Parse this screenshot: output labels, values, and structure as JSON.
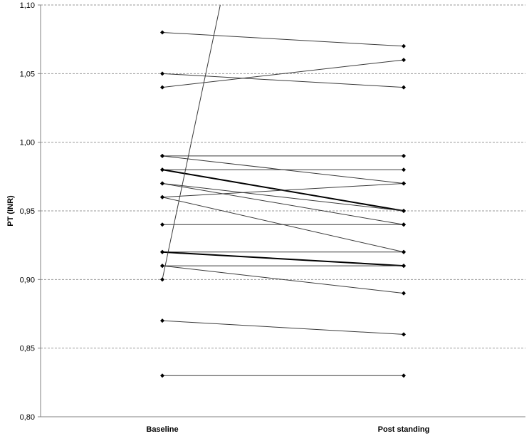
{
  "chart_data": {
    "type": "line",
    "title": "",
    "xlabel": "",
    "ylabel": "PT (INR)",
    "categories": [
      "Baseline",
      "Post standing"
    ],
    "ylim": [
      0.8,
      1.1
    ],
    "yticks": [
      "0,80",
      "0,85",
      "0,90",
      "0,95",
      "1,00",
      "1,05",
      "1,10"
    ],
    "ytick_values": [
      0.8,
      0.85,
      0.9,
      0.95,
      1.0,
      1.05,
      1.1
    ],
    "grid": "horizontal-dashed",
    "legend": "none",
    "series": [
      {
        "values": [
          1.08,
          1.07
        ]
      },
      {
        "values": [
          1.05,
          1.04
        ]
      },
      {
        "values": [
          1.04,
          1.06
        ]
      },
      {
        "values": [
          0.99,
          0.99
        ]
      },
      {
        "values": [
          0.99,
          0.97
        ]
      },
      {
        "values": [
          0.98,
          0.98
        ]
      },
      {
        "values": [
          0.98,
          0.95
        ],
        "bold": true
      },
      {
        "values": [
          0.97,
          0.94
        ]
      },
      {
        "values": [
          0.97,
          0.95
        ]
      },
      {
        "values": [
          0.96,
          0.97
        ]
      },
      {
        "values": [
          0.96,
          0.92
        ]
      },
      {
        "values": [
          0.94,
          0.94
        ]
      },
      {
        "values": [
          0.92,
          0.92
        ]
      },
      {
        "values": [
          0.92,
          0.91
        ],
        "bold": true
      },
      {
        "values": [
          0.91,
          0.91
        ]
      },
      {
        "values": [
          0.91,
          0.89
        ]
      },
      {
        "values": [
          0.87,
          0.86
        ]
      },
      {
        "values": [
          0.83,
          0.83
        ]
      },
      {
        "values": [
          0.9,
          1.1
        ],
        "clipped": true,
        "marker_end": false,
        "x_end_fraction": 0.24
      }
    ],
    "line_color": "#3a3a3a",
    "grid_color": "#9a9a9a"
  }
}
